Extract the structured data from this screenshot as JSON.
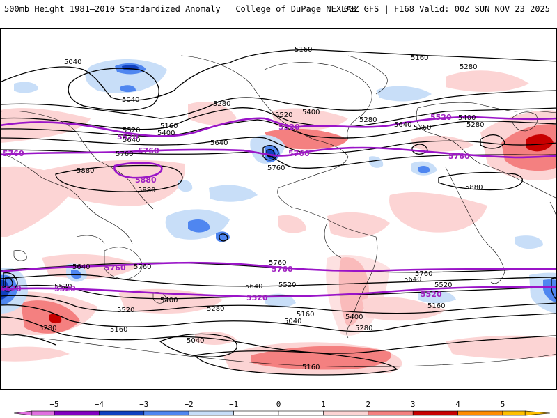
{
  "header": {
    "left": "500mb Height 1981–2010 Standardized Anomaly | College of DuPage NEXLAB",
    "right": "00Z GFS | F168 Valid: 00Z SUN NOV 23 2025"
  },
  "colors": {
    "neg5": "#e070e0",
    "neg4": "#8000c0",
    "neg3": "#1040c0",
    "neg2": "#4f86f0",
    "neg1": "#c8def8",
    "zero": "#ffffff",
    "pos1": "#fcd4d4",
    "pos2": "#f48080",
    "pos3": "#c80000",
    "pos4": "#ff8c00",
    "pos5": "#ffc000",
    "contour": "#000000",
    "highlight": "#9a14c8"
  },
  "colorbar": {
    "ticks": [
      "−5",
      "−4",
      "−3",
      "−2",
      "−1",
      "0",
      "1",
      "2",
      "3",
      "4",
      "5"
    ]
  },
  "contour_labels": {
    "l5040a": "5040",
    "l5040b": "5040",
    "l5040c": "5040",
    "l5040d": "5040",
    "l5160a": "5160",
    "l5160b": "5160",
    "l5160c": "5160",
    "l5160d": "5160",
    "l5160e": "5160",
    "l5160f": "5160",
    "l5160g": "5160",
    "l5280a": "5280",
    "l5280b": "5280",
    "l5280c": "5280",
    "l5280d": "5280",
    "l5280e": "5280",
    "l5280f": "5280",
    "l5280g": "5280",
    "l5400a": "5400",
    "l5400b": "5400",
    "l5400c": "5400",
    "l5400d": "5400",
    "l5400e": "5400",
    "l5520a": "5520",
    "l5520b": "5520",
    "l5520c": "5520",
    "l5520d": "5520",
    "l5520e": "5520",
    "l5520f": "5520",
    "l5640a": "5640",
    "l5640b": "5640",
    "l5640c": "5640",
    "l5640d": "5640",
    "l5640e": "5640",
    "l5640f": "5640",
    "l5760a": "5760",
    "l5760b": "5760",
    "l5760c": "5760",
    "l5760d": "5760",
    "l5760e": "5760",
    "l5760f": "5760",
    "l5880a": "5880",
    "l5880b": "5880",
    "l5880c": "5880"
  },
  "highlight_labels": {
    "p5520a": "5520",
    "p5520b": "5520",
    "p5520c": "5520",
    "p5520d": "5520",
    "p5520e": "5520",
    "p5520f": "5520",
    "p5520g": "5520",
    "p5760a": "5760",
    "p5760b": "5760",
    "p5760c": "5760",
    "p5760d": "5760",
    "p5760e": "5760",
    "p5760f": "5760",
    "p5880a": "5880"
  }
}
